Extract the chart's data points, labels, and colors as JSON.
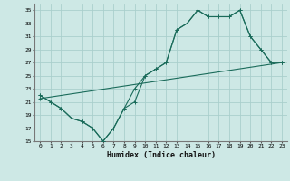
{
  "xlabel": "Humidex (Indice chaleur)",
  "xlim": [
    -0.5,
    23.5
  ],
  "ylim": [
    15,
    36
  ],
  "yticks": [
    15,
    17,
    19,
    21,
    23,
    25,
    27,
    29,
    31,
    33,
    35
  ],
  "xticks": [
    0,
    1,
    2,
    3,
    4,
    5,
    6,
    7,
    8,
    9,
    10,
    11,
    12,
    13,
    14,
    15,
    16,
    17,
    18,
    19,
    20,
    21,
    22,
    23
  ],
  "bg_color": "#cde8e5",
  "grid_color": "#aacfcc",
  "line_color": "#1a6b5a",
  "line1_x": [
    0,
    1,
    2,
    3,
    4,
    5,
    6,
    7,
    8,
    9,
    10,
    11,
    12,
    13,
    14,
    15,
    16,
    17,
    18,
    19,
    20,
    21,
    22,
    23
  ],
  "line1_y": [
    22,
    21,
    20,
    18.5,
    18,
    17,
    15,
    17,
    20,
    21,
    25,
    26,
    27,
    32,
    33,
    35,
    34,
    34,
    34,
    35,
    31,
    29,
    27,
    27
  ],
  "line2_x": [
    0,
    1,
    2,
    3,
    4,
    5,
    6,
    7,
    8,
    9,
    10,
    11,
    12,
    13,
    14,
    15,
    16,
    17,
    18,
    19,
    20,
    21,
    22,
    23
  ],
  "line2_y": [
    22,
    21,
    20,
    18.5,
    18,
    17,
    15,
    17,
    20,
    23,
    25,
    26,
    27,
    32,
    33,
    35,
    34,
    34,
    34,
    35,
    31,
    29,
    27,
    27
  ],
  "line3_x": [
    0,
    23
  ],
  "line3_y": [
    21.5,
    27
  ]
}
